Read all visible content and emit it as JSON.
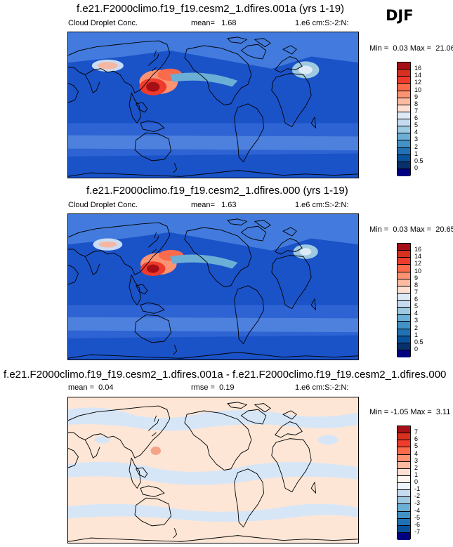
{
  "season": "DJF",
  "panels": [
    {
      "title": "f.e21.F2000climo.f19_f19.cesm2_1.dfires.001a (yrs 1-19)",
      "variable": "Cloud Droplet Conc.",
      "mean_label": "mean=",
      "mean_value": "1.68",
      "units": "1.e6 cm:S:-2:N:",
      "min_label": "Min =",
      "min_value": "0.03",
      "max_label": "Max =",
      "max_value": "21.06",
      "ticks": [
        "16",
        "14",
        "12",
        "10",
        "9",
        "8",
        "7",
        "6",
        "5",
        "4",
        "3",
        "2",
        "1",
        "0.5",
        "0"
      ],
      "colors": [
        "#a50f15",
        "#d7301f",
        "#ef3b2c",
        "#fb6a4a",
        "#fc9272",
        "#fcbba1",
        "#fee0d2",
        "#deebf7",
        "#c6dbef",
        "#9ecae1",
        "#6baed6",
        "#4292c6",
        "#2171b5",
        "#08519c",
        "#08306b",
        "#000080"
      ]
    },
    {
      "title": "f.e21.F2000climo.f19_f19.cesm2_1.dfires.000 (yrs 1-19)",
      "variable": "Cloud Droplet Conc.",
      "mean_label": "mean=",
      "mean_value": "1.63",
      "units": "1.e6 cm:S:-2:N:",
      "min_label": "Min =",
      "min_value": "0.03",
      "max_label": "Max =",
      "max_value": "20.65",
      "ticks": [
        "16",
        "14",
        "12",
        "10",
        "9",
        "8",
        "7",
        "6",
        "5",
        "4",
        "3",
        "2",
        "1",
        "0.5",
        "0"
      ],
      "colors": [
        "#a50f15",
        "#d7301f",
        "#ef3b2c",
        "#fb6a4a",
        "#fc9272",
        "#fcbba1",
        "#fee0d2",
        "#deebf7",
        "#c6dbef",
        "#9ecae1",
        "#6baed6",
        "#4292c6",
        "#2171b5",
        "#08519c",
        "#08306b",
        "#000080"
      ]
    },
    {
      "title": "f.e21.F2000climo.f19_f19.cesm2_1.dfires.001a - f.e21.F2000climo.f19_f19.cesm2_1.dfires.000",
      "mean_label": "mean =",
      "mean_value": "0.04",
      "rmse_label": "rmse =",
      "rmse_value": "0.19",
      "units": "1.e6 cm:S:-2:N:",
      "min_label": "Min =",
      "min_value": "-1.05",
      "max_label": "Max =",
      "max_value": "3.11",
      "ticks": [
        "7",
        "6",
        "5",
        "4",
        "3",
        "2",
        "1",
        "0",
        "-1",
        "-2",
        "-3",
        "-4",
        "-5",
        "-6",
        "-7"
      ],
      "colors": [
        "#a50f15",
        "#d7301f",
        "#ef3b2c",
        "#fb6a4a",
        "#fc9272",
        "#fcbba1",
        "#fee0d2",
        "#fff5ee",
        "#eef4fb",
        "#c6dbef",
        "#9ecae1",
        "#6baed6",
        "#4292c6",
        "#2171b5",
        "#08519c",
        "#000080"
      ]
    }
  ]
}
